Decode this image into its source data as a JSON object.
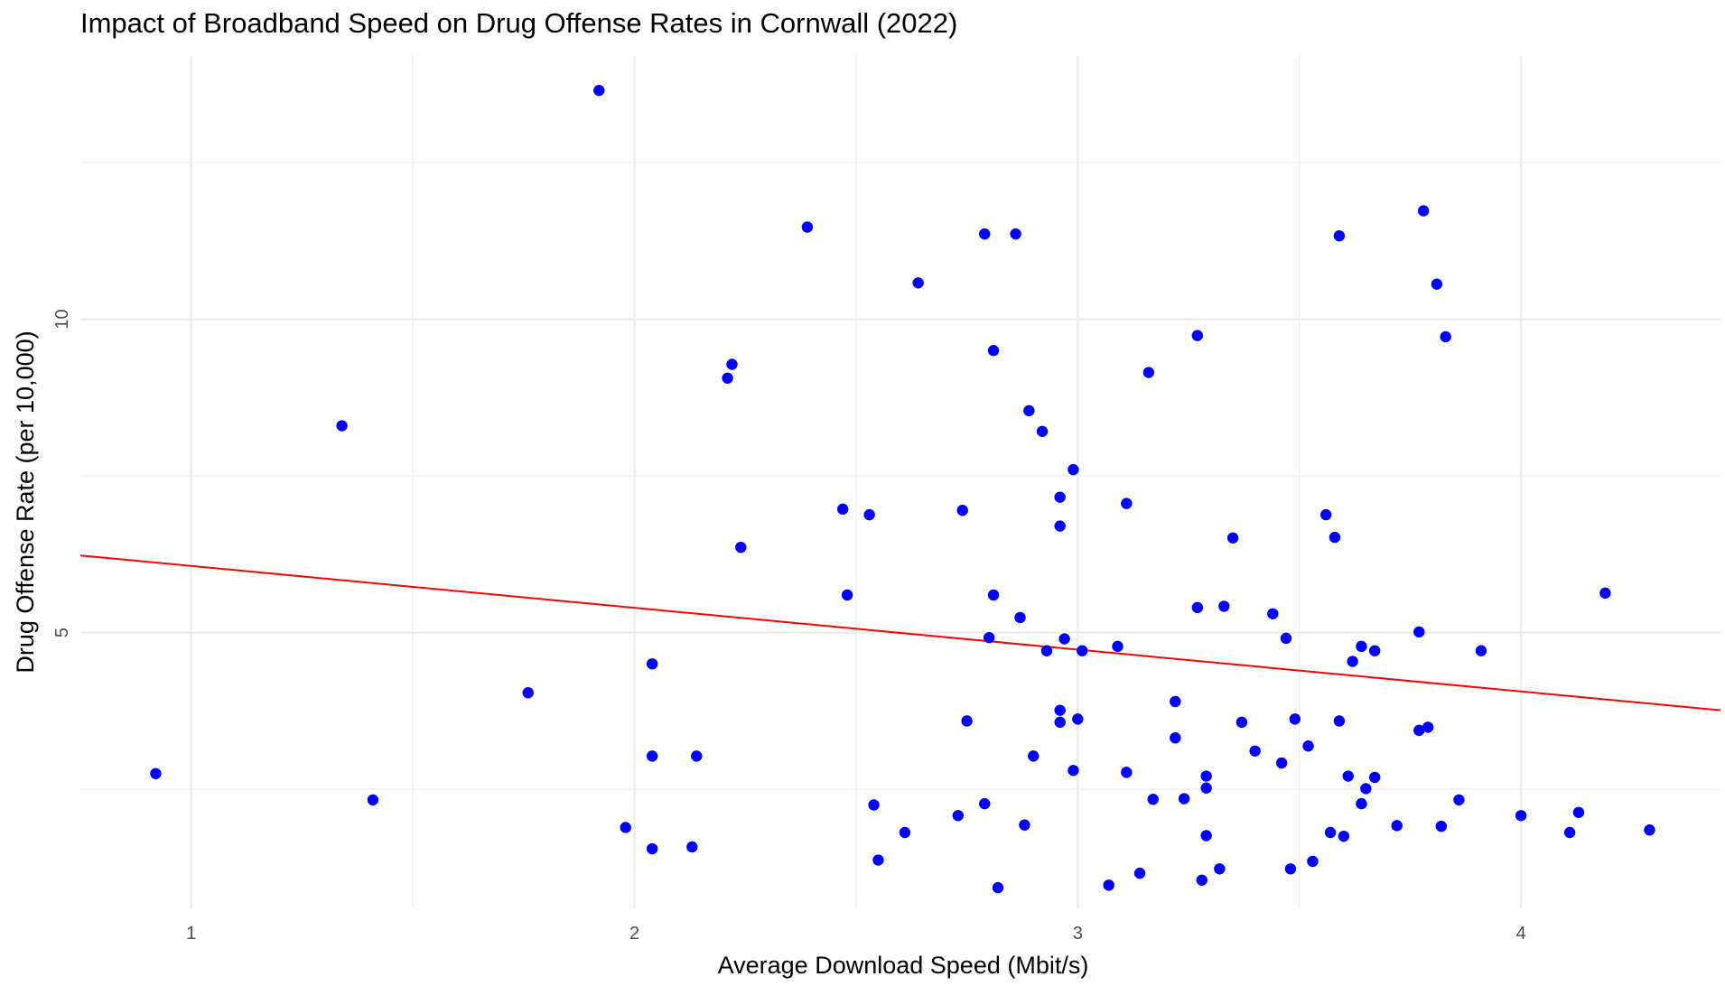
{
  "chart_data": {
    "type": "scatter",
    "title": "Impact of Broadband Speed on Drug Offense Rates in Cornwall (2022)",
    "xlabel": "Average Download Speed (Mbit/s)",
    "ylabel": "Drug Offense Rate (per 10,000)",
    "xlim": [
      0.75,
      4.45
    ],
    "ylim": [
      0.6,
      14.2
    ],
    "x_ticks": [
      1,
      2,
      3,
      4
    ],
    "x_tick_labels": [
      "1",
      "2",
      "3",
      "4"
    ],
    "y_ticks": [
      5,
      10
    ],
    "y_tick_labels": [
      "5",
      "10"
    ],
    "x_minor_ticks": [
      1.5,
      2.5,
      3.5
    ],
    "y_minor_ticks": [
      2.5,
      7.5,
      12.5
    ],
    "grid": true,
    "point_color": "#0000ff",
    "line_color": "#ff0000",
    "background": "#ffffff",
    "grid_color": "#ebebeb",
    "trend_line": {
      "x": [
        0.75,
        4.45
      ],
      "y": [
        6.23,
        3.76
      ]
    },
    "points": [
      [
        0.92,
        2.75
      ],
      [
        1.34,
        8.3
      ],
      [
        1.41,
        2.33
      ],
      [
        1.76,
        4.04
      ],
      [
        1.92,
        13.65
      ],
      [
        1.98,
        1.89
      ],
      [
        2.04,
        4.5
      ],
      [
        2.04,
        3.03
      ],
      [
        2.04,
        1.55
      ],
      [
        2.13,
        1.58
      ],
      [
        2.14,
        3.03
      ],
      [
        2.21,
        9.06
      ],
      [
        2.22,
        9.28
      ],
      [
        2.24,
        6.36
      ],
      [
        2.39,
        11.47
      ],
      [
        2.47,
        6.97
      ],
      [
        2.48,
        5.6
      ],
      [
        2.53,
        6.88
      ],
      [
        2.54,
        2.25
      ],
      [
        2.55,
        1.37
      ],
      [
        2.61,
        1.81
      ],
      [
        2.64,
        10.58
      ],
      [
        2.73,
        2.08
      ],
      [
        2.74,
        6.95
      ],
      [
        2.75,
        3.59
      ],
      [
        2.79,
        2.27
      ],
      [
        2.79,
        11.36
      ],
      [
        2.8,
        4.92
      ],
      [
        2.81,
        5.6
      ],
      [
        2.81,
        9.5
      ],
      [
        2.82,
        0.93
      ],
      [
        2.86,
        11.36
      ],
      [
        2.87,
        5.24
      ],
      [
        2.88,
        1.93
      ],
      [
        2.89,
        8.54
      ],
      [
        2.9,
        3.03
      ],
      [
        2.92,
        8.21
      ],
      [
        2.93,
        4.71
      ],
      [
        2.96,
        7.16
      ],
      [
        2.96,
        6.7
      ],
      [
        2.96,
        3.76
      ],
      [
        2.96,
        3.57
      ],
      [
        2.97,
        4.9
      ],
      [
        2.99,
        7.6
      ],
      [
        2.99,
        2.8
      ],
      [
        3.0,
        3.62
      ],
      [
        3.01,
        4.71
      ],
      [
        3.07,
        0.97
      ],
      [
        3.09,
        4.78
      ],
      [
        3.11,
        7.06
      ],
      [
        3.11,
        2.77
      ],
      [
        3.14,
        1.16
      ],
      [
        3.16,
        9.15
      ],
      [
        3.17,
        2.34
      ],
      [
        3.22,
        3.9
      ],
      [
        3.22,
        3.32
      ],
      [
        3.24,
        2.35
      ],
      [
        3.27,
        9.74
      ],
      [
        3.27,
        5.4
      ],
      [
        3.28,
        1.05
      ],
      [
        3.29,
        2.71
      ],
      [
        3.29,
        2.52
      ],
      [
        3.29,
        1.76
      ],
      [
        3.32,
        1.23
      ],
      [
        3.33,
        5.42
      ],
      [
        3.35,
        6.51
      ],
      [
        3.37,
        3.57
      ],
      [
        3.4,
        3.11
      ],
      [
        3.44,
        5.3
      ],
      [
        3.46,
        2.92
      ],
      [
        3.47,
        4.91
      ],
      [
        3.48,
        1.23
      ],
      [
        3.49,
        3.62
      ],
      [
        3.52,
        3.19
      ],
      [
        3.53,
        1.35
      ],
      [
        3.56,
        6.88
      ],
      [
        3.57,
        1.81
      ],
      [
        3.58,
        6.52
      ],
      [
        3.59,
        11.33
      ],
      [
        3.59,
        3.59
      ],
      [
        3.6,
        1.75
      ],
      [
        3.61,
        2.71
      ],
      [
        3.62,
        4.54
      ],
      [
        3.64,
        4.78
      ],
      [
        3.64,
        2.27
      ],
      [
        3.65,
        2.51
      ],
      [
        3.67,
        4.71
      ],
      [
        3.67,
        2.69
      ],
      [
        3.72,
        1.92
      ],
      [
        3.77,
        5.01
      ],
      [
        3.77,
        3.44
      ],
      [
        3.78,
        11.73
      ],
      [
        3.79,
        3.49
      ],
      [
        3.81,
        10.56
      ],
      [
        3.82,
        1.91
      ],
      [
        3.83,
        9.72
      ],
      [
        3.86,
        2.33
      ],
      [
        3.91,
        4.71
      ],
      [
        4.0,
        2.08
      ],
      [
        4.11,
        1.81
      ],
      [
        4.13,
        2.13
      ],
      [
        4.19,
        5.63
      ],
      [
        4.29,
        1.85
      ]
    ]
  }
}
